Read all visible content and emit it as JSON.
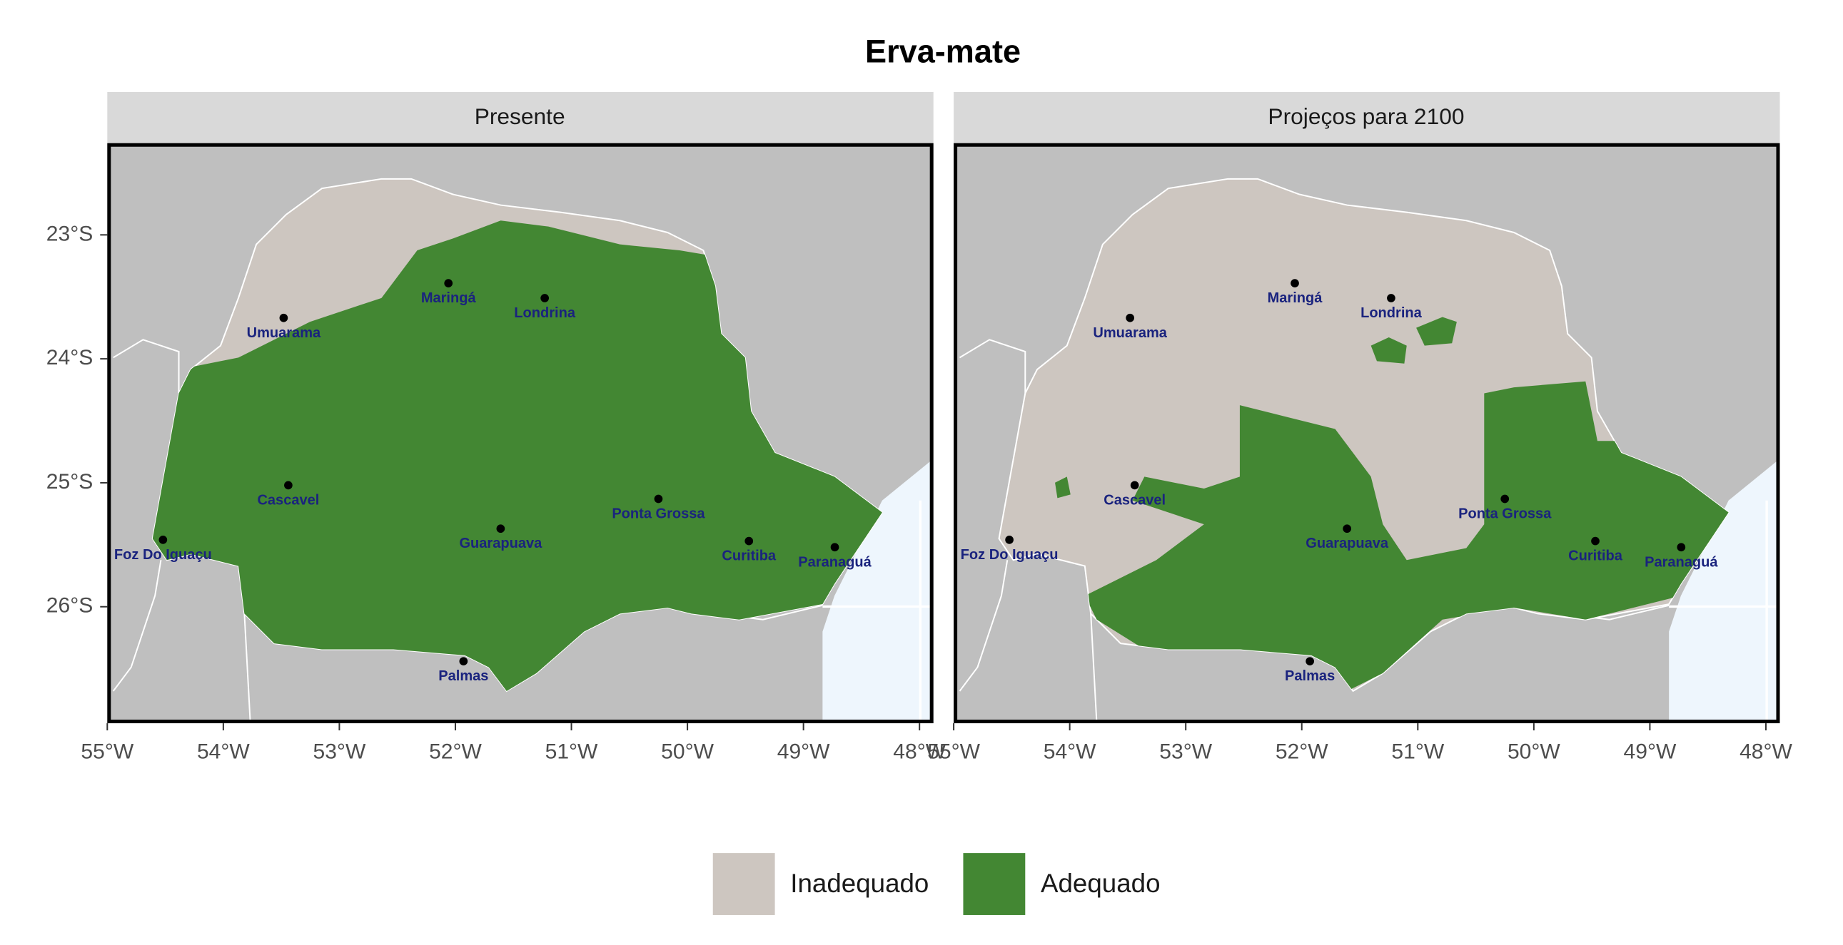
{
  "title": "Erva-mate",
  "panels": [
    {
      "title": "Presente"
    },
    {
      "title": "Projeços para 2100"
    }
  ],
  "xlim": [
    -55,
    -47.88
  ],
  "ylim": [
    -26.94,
    -22.26
  ],
  "xticks": [
    {
      "value": -55,
      "label": "55°W"
    },
    {
      "value": -54,
      "label": "54°W"
    },
    {
      "value": -53,
      "label": "53°W"
    },
    {
      "value": -52,
      "label": "52°W"
    },
    {
      "value": -51,
      "label": "51°W"
    },
    {
      "value": -50,
      "label": "50°W"
    },
    {
      "value": -49,
      "label": "49°W"
    },
    {
      "value": -48,
      "label": "48°W"
    }
  ],
  "yticks": [
    {
      "value": -23,
      "label": "23°S"
    },
    {
      "value": -24,
      "label": "24°S"
    },
    {
      "value": -25,
      "label": "25°S"
    },
    {
      "value": -26,
      "label": "26°S"
    }
  ],
  "cities": [
    {
      "name": "Maringá",
      "lon": -52.06,
      "lat": -23.39
    },
    {
      "name": "Londrina",
      "lon": -51.23,
      "lat": -23.51
    },
    {
      "name": "Umuarama",
      "lon": -53.48,
      "lat": -23.67
    },
    {
      "name": "Cascavel",
      "lon": -53.44,
      "lat": -25.02
    },
    {
      "name": "Foz Do Iguaçu",
      "lon": -54.52,
      "lat": -25.46
    },
    {
      "name": "Guarapuava",
      "lon": -51.61,
      "lat": -25.37
    },
    {
      "name": "Ponta Grossa",
      "lon": -50.25,
      "lat": -25.13
    },
    {
      "name": "Curitiba",
      "lon": -49.47,
      "lat": -25.47
    },
    {
      "name": "Paranaguá",
      "lon": -48.73,
      "lat": -25.52
    },
    {
      "name": "Palmas",
      "lon": -51.93,
      "lat": -26.44
    }
  ],
  "legend": [
    {
      "label": "Inadequado",
      "color": "#cdc6c0"
    },
    {
      "label": "Adequado",
      "color": "#438733"
    }
  ]
}
